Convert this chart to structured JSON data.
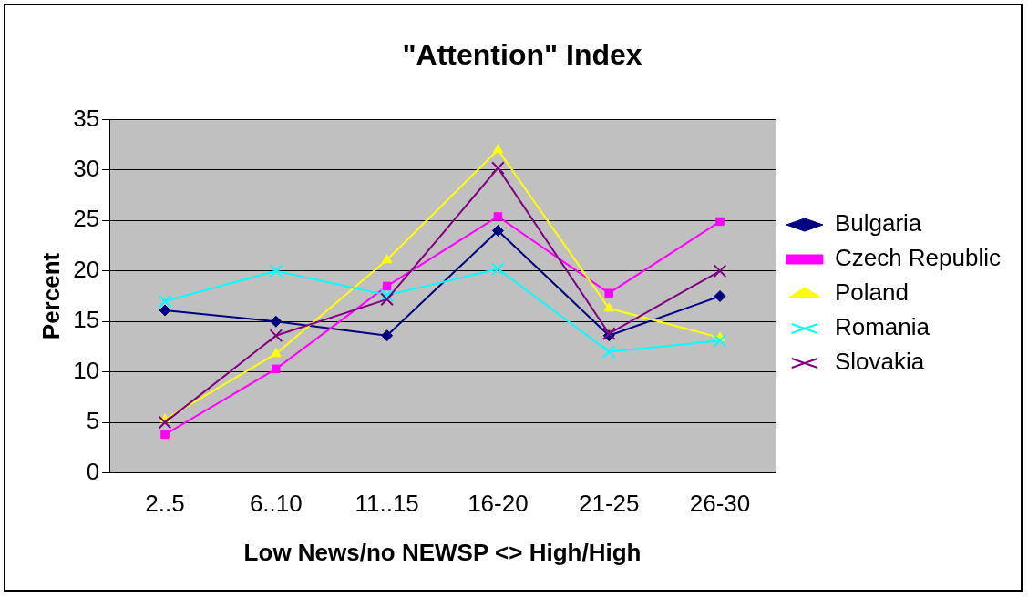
{
  "chart_data": {
    "type": "line",
    "title": "\"Attention\" Index",
    "xlabel": "Low News/no NEWSP <> High/High",
    "ylabel": "Percent",
    "categories": [
      "2..5",
      "6..10",
      "11..15",
      "16-20",
      "21-25",
      "26-30"
    ],
    "series": [
      {
        "name": "Bulgaria",
        "color": "#000080",
        "marker": "diamond",
        "values": [
          16.1,
          15,
          13.6,
          24,
          13.6,
          17.5
        ]
      },
      {
        "name": "Czech Republic",
        "color": "#ff00ff",
        "marker": "square",
        "values": [
          3.8,
          10.3,
          18.5,
          25.4,
          17.8,
          24.9
        ]
      },
      {
        "name": "Poland",
        "color": "#ffff00",
        "marker": "triangle",
        "values": [
          5.3,
          11.8,
          21.1,
          32,
          16.3,
          13.4
        ]
      },
      {
        "name": "Romania",
        "color": "#00ffff",
        "marker": "cross",
        "values": [
          17,
          20,
          17.6,
          20.2,
          12,
          13.1
        ]
      },
      {
        "name": "Slovakia",
        "color": "#800080",
        "marker": "cross",
        "values": [
          5,
          13.6,
          17.2,
          30.2,
          13.8,
          20
        ]
      }
    ],
    "ylim": [
      0,
      35
    ],
    "yticks": [
      0,
      5,
      10,
      15,
      20,
      25,
      30,
      35
    ],
    "grid": "y",
    "legend": "right"
  }
}
